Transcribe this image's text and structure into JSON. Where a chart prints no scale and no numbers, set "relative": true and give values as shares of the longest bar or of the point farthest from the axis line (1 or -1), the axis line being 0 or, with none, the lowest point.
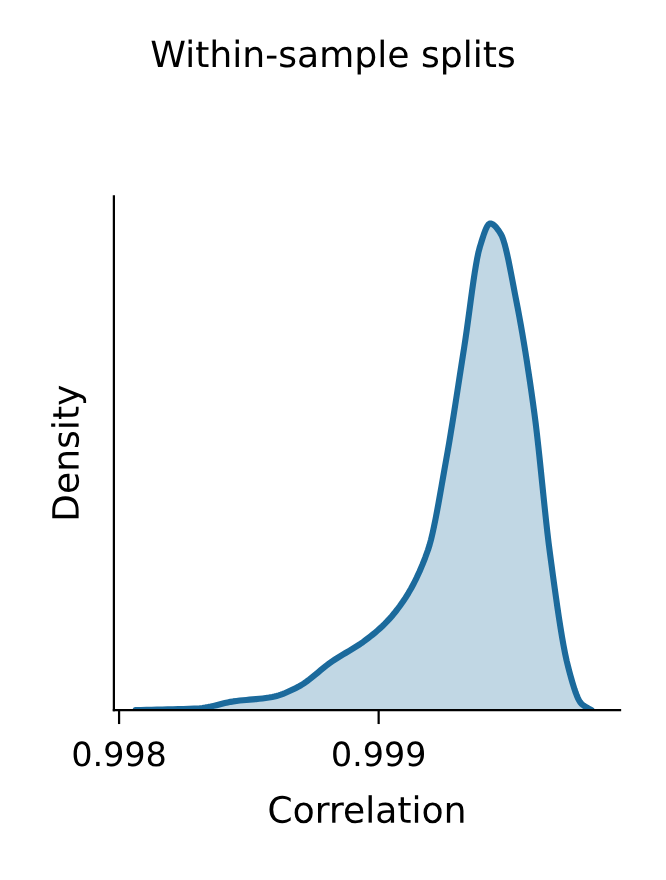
{
  "chart_data": {
    "type": "area",
    "title": "Within-sample splits",
    "xlabel": "Correlation",
    "ylabel": "Density",
    "relative": true,
    "x": [
      0.998064,
      0.99831,
      0.99844,
      0.99859,
      0.99869,
      0.99882,
      0.99895,
      0.99906,
      0.99919,
      0.99926,
      0.99933,
      0.99939,
      0.99943,
      0.99947,
      0.99953,
      0.9996,
      0.99966,
      0.99973,
      0.99978,
      0.99982
    ],
    "series": [
      {
        "color": "#1b6a9c",
        "values": [
          0,
          0.004,
          0.018,
          0.027,
          0.048,
          0.1,
          0.144,
          0.199,
          0.329,
          0.514,
          0.747,
          0.952,
          1,
          0.979,
          0.842,
          0.61,
          0.322,
          0.089,
          0.014,
          0
        ]
      }
    ],
    "xlim": [
      0.99798,
      0.99993
    ],
    "xticks": [
      0.998,
      0.999
    ],
    "grid": false,
    "legend": false
  }
}
